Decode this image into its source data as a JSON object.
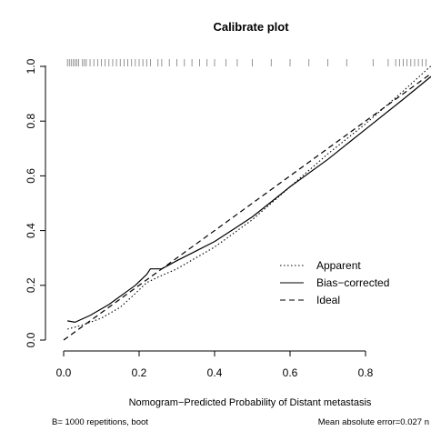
{
  "chart_data": {
    "type": "line",
    "title": "Calibrate plot",
    "xlabel": "Nomogram−Predicted Probability of Distant metastasis",
    "ylabel": "",
    "xlim": [
      0,
      1
    ],
    "ylim": [
      0,
      1
    ],
    "x_ticks": [
      "0.0",
      "0.2",
      "0.4",
      "0.6",
      "0.8"
    ],
    "y_ticks": [
      "0.0",
      "0.2",
      "0.4",
      "0.6",
      "0.8",
      "1.0"
    ],
    "x_tick_values": [
      0.0,
      0.2,
      0.4,
      0.6,
      0.8
    ],
    "y_tick_values": [
      0.0,
      0.2,
      0.4,
      0.6,
      0.8,
      1.0
    ],
    "grid": false,
    "legend_position": "bottom-right",
    "footnote_left": "B= 1000 repetitions, boot",
    "footnote_right": "Mean absolute error=0.027 n",
    "series": [
      {
        "name": "Apparent",
        "style": "dotted",
        "x": [
          0.01,
          0.05,
          0.1,
          0.15,
          0.19,
          0.22,
          0.25,
          0.3,
          0.4,
          0.5,
          0.6,
          0.7,
          0.8,
          0.9,
          0.98
        ],
        "y": [
          0.04,
          0.055,
          0.08,
          0.12,
          0.17,
          0.21,
          0.23,
          0.26,
          0.34,
          0.44,
          0.56,
          0.68,
          0.79,
          0.91,
          1.01
        ]
      },
      {
        "name": "Bias−corrected",
        "style": "solid",
        "x": [
          0.01,
          0.03,
          0.07,
          0.12,
          0.16,
          0.19,
          0.22,
          0.23,
          0.26,
          0.3,
          0.35,
          0.4,
          0.45,
          0.5,
          0.55,
          0.6,
          0.7,
          0.8,
          0.9,
          0.98
        ],
        "y": [
          0.07,
          0.065,
          0.09,
          0.13,
          0.17,
          0.2,
          0.24,
          0.26,
          0.26,
          0.29,
          0.325,
          0.36,
          0.405,
          0.45,
          0.505,
          0.56,
          0.66,
          0.77,
          0.88,
          0.97
        ]
      },
      {
        "name": "Ideal",
        "style": "dashed",
        "x": [
          0,
          1
        ],
        "y": [
          0,
          1
        ]
      }
    ],
    "rug_x": [
      0.01,
      0.015,
      0.02,
      0.025,
      0.03,
      0.035,
      0.04,
      0.05,
      0.055,
      0.06,
      0.07,
      0.08,
      0.09,
      0.1,
      0.11,
      0.12,
      0.13,
      0.14,
      0.15,
      0.16,
      0.17,
      0.18,
      0.19,
      0.2,
      0.21,
      0.22,
      0.23,
      0.25,
      0.26,
      0.28,
      0.3,
      0.32,
      0.34,
      0.36,
      0.38,
      0.4,
      0.43,
      0.46,
      0.5,
      0.55,
      0.6,
      0.65,
      0.7,
      0.75,
      0.82,
      0.86,
      0.88,
      0.89,
      0.9,
      0.91,
      0.92,
      0.93,
      0.94,
      0.95,
      0.96,
      0.97,
      0.98
    ]
  }
}
